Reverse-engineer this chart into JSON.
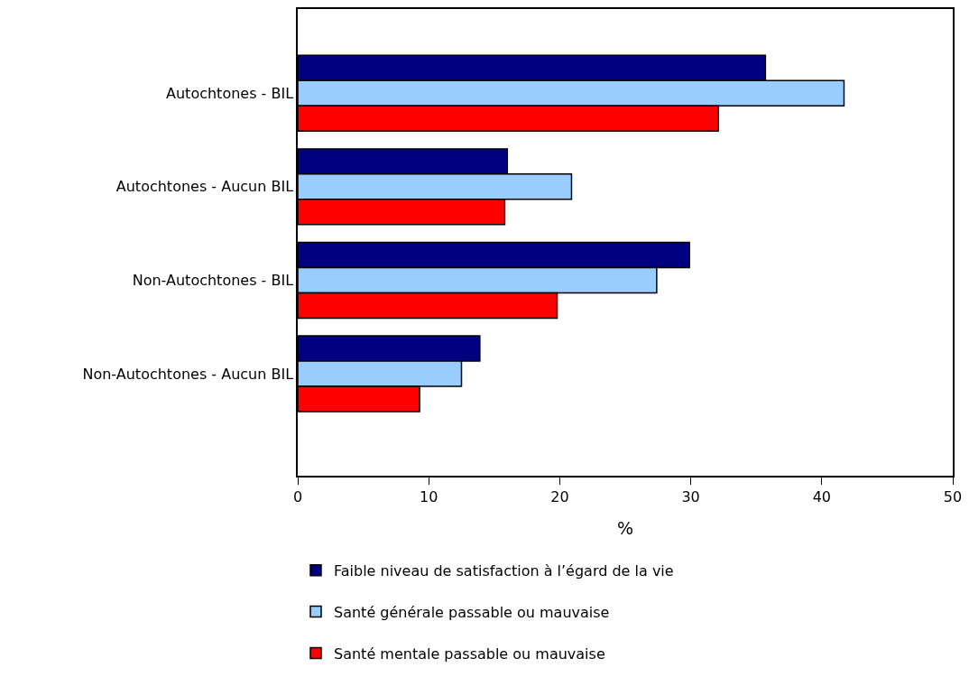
{
  "chart_data": {
    "type": "bar",
    "orientation": "horizontal",
    "xlabel": "%",
    "categories": [
      "Autochtones - BIL",
      "Autochtones - Aucun BIL",
      "Non-Autochtones - BIL",
      "Non-Autochtones - Aucun BIL"
    ],
    "series": [
      {
        "name": "Faible niveau de satisfaction à l’égard de la vie",
        "color": "#000080",
        "values": [
          35.7,
          16.0,
          29.9,
          13.9
        ]
      },
      {
        "name": "Santé générale passable ou mauvaise",
        "color": "#99ccff",
        "values": [
          41.7,
          20.9,
          27.4,
          12.5
        ]
      },
      {
        "name": "Santé mentale passable ou mauvaise",
        "color": "#ff0000",
        "values": [
          32.1,
          15.8,
          19.8,
          9.3
        ]
      }
    ],
    "xlim": [
      0,
      50
    ],
    "xticks": [
      0,
      10,
      20,
      30,
      40,
      50
    ],
    "grid": false,
    "legend": "bottom"
  }
}
